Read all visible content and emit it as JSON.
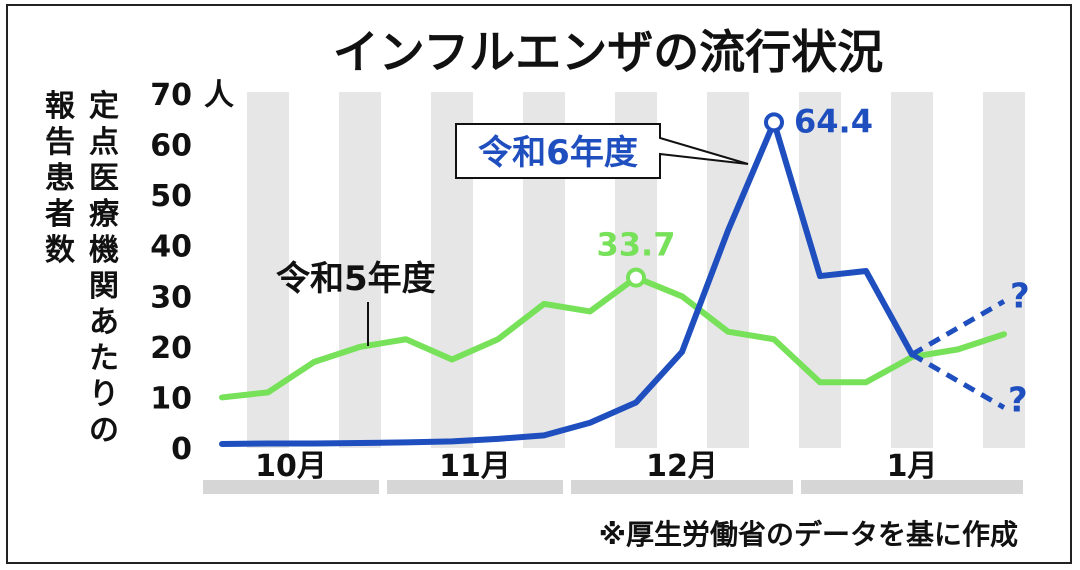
{
  "title": "インフルエンザの流行状況",
  "source_note": "※厚生労働省のデータを基に作成",
  "colors": {
    "r5": "#77e15a",
    "r6": "#1f4fbf",
    "stripe": "#e6e6e6",
    "month_bar": "#d6d6d6"
  },
  "chart_data": {
    "type": "line",
    "ylabel": "定点医療機関あたりの報告患者数",
    "yunit": "人",
    "ylim": [
      0,
      70
    ],
    "yticks": [
      0,
      10,
      20,
      30,
      40,
      50,
      60,
      70
    ],
    "months": [
      "10月",
      "11月",
      "12月",
      "1月"
    ],
    "week_count": 20,
    "series": [
      {
        "name": "令和5年度",
        "color": "#77e15a",
        "values": [
          10,
          11,
          17,
          20,
          21.5,
          17.5,
          21.5,
          28.5,
          27,
          33.7,
          30,
          23,
          21.5,
          13,
          13,
          18,
          19.5
        ],
        "projection": [
          [
            16,
            19.5
          ],
          [
            17,
            22.5
          ]
        ],
        "peak": {
          "index": 9,
          "label": "33.7"
        }
      },
      {
        "name": "令和6年度",
        "color": "#1f4fbf",
        "values": [
          0.8,
          0.9,
          0.9,
          1.0,
          1.1,
          1.3,
          1.8,
          2.5,
          5,
          9,
          19,
          43,
          64.4,
          34,
          35,
          18.5
        ],
        "projection_up": [
          [
            15,
            18.5
          ],
          [
            17,
            29
          ]
        ],
        "projection_down": [
          [
            15,
            18.5
          ],
          [
            17,
            8
          ]
        ],
        "projection_marks": [
          "?",
          "?"
        ],
        "peak": {
          "index": 12,
          "label": "64.4"
        }
      }
    ]
  }
}
